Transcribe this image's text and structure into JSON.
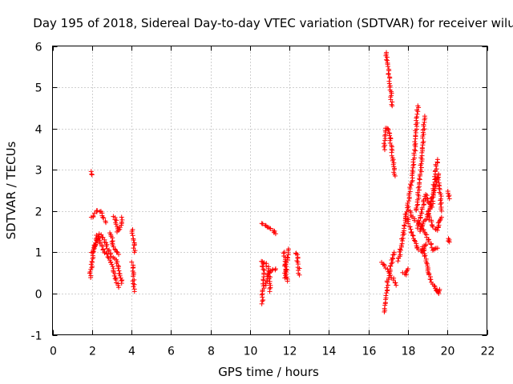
{
  "chart_data": {
    "type": "scatter",
    "title": "Day 195 of 2018, Sidereal Day-to-day VTEC variation (SDTVAR) for receiver wilu",
    "xlabel": "GPS time / hours",
    "ylabel": "SDTVAR / TECUs",
    "xlim": [
      0,
      22
    ],
    "ylim": [
      -1,
      6
    ],
    "xticks": [
      0,
      2,
      4,
      6,
      8,
      10,
      12,
      14,
      16,
      18,
      20,
      22
    ],
    "yticks": [
      -1,
      0,
      1,
      2,
      3,
      4,
      5,
      6
    ],
    "xtick_labels": [
      "0",
      "2",
      "4",
      "6",
      "8",
      "10",
      "12",
      "14",
      "16",
      "18",
      "20",
      "22"
    ],
    "ytick_labels": [
      "-1",
      "0",
      "1",
      "2",
      "3",
      "4",
      "5",
      "6"
    ],
    "grid": true,
    "marker": "+",
    "color": "#ff0000",
    "series": [
      {
        "name": "tracks",
        "tracks": [
          [
            [
              1.95,
              2.95
            ],
            [
              2.0,
              2.88
            ]
          ],
          [
            [
              1.95,
              1.85
            ],
            [
              2.1,
              1.9
            ],
            [
              2.3,
              2.02
            ],
            [
              2.5,
              1.95
            ],
            [
              2.7,
              1.72
            ]
          ],
          [
            [
              1.9,
              0.4
            ],
            [
              2.0,
              0.75
            ],
            [
              2.1,
              1.1
            ],
            [
              2.25,
              1.4
            ],
            [
              2.4,
              1.25
            ],
            [
              2.6,
              1.0
            ],
            [
              2.8,
              0.95
            ],
            [
              3.0,
              0.7
            ],
            [
              3.2,
              0.35
            ],
            [
              3.35,
              0.15
            ]
          ],
          [
            [
              2.0,
              1.0
            ],
            [
              2.2,
              1.2
            ],
            [
              2.4,
              1.45
            ],
            [
              2.6,
              1.3
            ],
            [
              2.8,
              1.1
            ],
            [
              3.0,
              0.9
            ],
            [
              3.2,
              0.8
            ],
            [
              3.4,
              0.55
            ],
            [
              3.5,
              0.25
            ]
          ],
          [
            [
              3.1,
              1.88
            ],
            [
              3.2,
              1.8
            ],
            [
              3.3,
              1.5
            ],
            [
              3.45,
              1.65
            ],
            [
              3.5,
              1.85
            ]
          ],
          [
            [
              2.9,
              1.45
            ],
            [
              3.05,
              1.25
            ],
            [
              3.15,
              1.05
            ],
            [
              3.35,
              0.95
            ]
          ],
          [
            [
              4.05,
              1.55
            ],
            [
              4.1,
              1.3
            ],
            [
              4.15,
              1.0
            ]
          ],
          [
            [
              4.05,
              0.75
            ],
            [
              4.1,
              0.5
            ],
            [
              4.1,
              0.25
            ],
            [
              4.15,
              0.05
            ]
          ],
          [
            [
              10.6,
              1.72
            ],
            [
              10.8,
              1.65
            ],
            [
              11.0,
              1.58
            ],
            [
              11.2,
              1.52
            ],
            [
              11.3,
              1.45
            ]
          ],
          [
            [
              10.6,
              0.8
            ],
            [
              10.7,
              0.55
            ],
            [
              10.7,
              0.3
            ],
            [
              10.65,
              0.0
            ],
            [
              10.6,
              -0.25
            ]
          ],
          [
            [
              10.8,
              0.2
            ],
            [
              10.9,
              0.4
            ],
            [
              11.0,
              0.5
            ],
            [
              11.1,
              0.55
            ],
            [
              11.3,
              0.6
            ]
          ],
          [
            [
              10.75,
              0.75
            ],
            [
              10.9,
              0.65
            ],
            [
              11.0,
              0.35
            ],
            [
              11.0,
              0.05
            ]
          ],
          [
            [
              11.7,
              1.0
            ],
            [
              11.8,
              0.8
            ],
            [
              11.85,
              0.6
            ],
            [
              11.85,
              0.45
            ],
            [
              11.9,
              0.3
            ]
          ],
          [
            [
              11.75,
              0.4
            ],
            [
              11.8,
              0.65
            ],
            [
              11.9,
              0.85
            ],
            [
              11.95,
              1.08
            ]
          ],
          [
            [
              12.35,
              1.0
            ],
            [
              12.4,
              0.85
            ],
            [
              12.45,
              0.65
            ],
            [
              12.5,
              0.45
            ]
          ],
          [
            [
              16.9,
              5.85
            ],
            [
              17.0,
              5.5
            ],
            [
              17.1,
              5.0
            ],
            [
              17.2,
              4.55
            ]
          ],
          [
            [
              16.8,
              3.5
            ],
            [
              16.9,
              4.0
            ],
            [
              17.0,
              4.0
            ],
            [
              17.15,
              3.6
            ],
            [
              17.25,
              3.2
            ],
            [
              17.35,
              2.85
            ]
          ],
          [
            [
              16.8,
              -0.45
            ],
            [
              16.9,
              0.0
            ],
            [
              17.0,
              0.4
            ],
            [
              17.1,
              0.65
            ],
            [
              17.2,
              0.8
            ],
            [
              17.3,
              1.0
            ]
          ],
          [
            [
              16.7,
              0.75
            ],
            [
              16.8,
              0.7
            ],
            [
              17.0,
              0.55
            ],
            [
              17.2,
              0.4
            ],
            [
              17.4,
              0.2
            ]
          ],
          [
            [
              17.5,
              0.8
            ],
            [
              17.6,
              1.0
            ],
            [
              17.75,
              1.4
            ],
            [
              17.9,
              1.8
            ],
            [
              18.05,
              2.3
            ],
            [
              18.2,
              2.8
            ],
            [
              18.35,
              3.5
            ],
            [
              18.45,
              4.2
            ],
            [
              18.5,
              4.55
            ]
          ],
          [
            [
              17.75,
              0.5
            ],
            [
              17.9,
              0.45
            ],
            [
              18.0,
              0.6
            ]
          ],
          [
            [
              17.9,
              1.9
            ],
            [
              18.1,
              1.6
            ],
            [
              18.3,
              1.3
            ],
            [
              18.5,
              1.1
            ],
            [
              18.7,
              1.0
            ],
            [
              18.8,
              1.1
            ],
            [
              18.9,
              1.2
            ]
          ],
          [
            [
              18.1,
              2.0
            ],
            [
              18.3,
              1.8
            ],
            [
              18.5,
              1.7
            ],
            [
              18.7,
              1.6
            ],
            [
              18.9,
              1.45
            ],
            [
              19.1,
              1.25
            ],
            [
              19.3,
              1.05
            ],
            [
              19.5,
              1.1
            ]
          ],
          [
            [
              18.4,
              2.0
            ],
            [
              18.5,
              2.3
            ],
            [
              18.6,
              2.7
            ],
            [
              18.7,
              3.3
            ],
            [
              18.8,
              3.9
            ],
            [
              18.85,
              4.3
            ]
          ],
          [
            [
              18.5,
              1.6
            ],
            [
              18.7,
              2.0
            ],
            [
              18.9,
              2.4
            ],
            [
              19.0,
              2.2
            ],
            [
              19.2,
              2.1
            ],
            [
              19.3,
              2.5
            ],
            [
              19.4,
              3.0
            ],
            [
              19.5,
              3.25
            ]
          ],
          [
            [
              18.6,
              1.5
            ],
            [
              18.8,
              1.7
            ],
            [
              19.0,
              1.9
            ],
            [
              19.2,
              2.3
            ],
            [
              19.4,
              2.6
            ],
            [
              19.55,
              2.9
            ]
          ],
          [
            [
              18.75,
              1.15
            ],
            [
              18.9,
              0.8
            ],
            [
              19.0,
              0.6
            ],
            [
              19.1,
              0.4
            ],
            [
              19.3,
              0.2
            ],
            [
              19.5,
              0.05
            ]
          ],
          [
            [
              19.0,
              2.0
            ],
            [
              19.1,
              1.8
            ],
            [
              19.3,
              1.6
            ],
            [
              19.5,
              1.55
            ],
            [
              19.6,
              1.75
            ],
            [
              19.7,
              1.85
            ]
          ],
          [
            [
              19.55,
              2.8
            ],
            [
              19.6,
              2.6
            ],
            [
              19.65,
              2.3
            ],
            [
              19.7,
              2.0
            ]
          ],
          [
            [
              19.45,
              0.1
            ],
            [
              19.55,
              0.0
            ],
            [
              19.6,
              0.1
            ]
          ],
          [
            [
              20.05,
              2.5
            ],
            [
              20.1,
              2.3
            ]
          ],
          [
            [
              20.05,
              1.35
            ],
            [
              20.1,
              1.25
            ]
          ]
        ]
      }
    ]
  }
}
